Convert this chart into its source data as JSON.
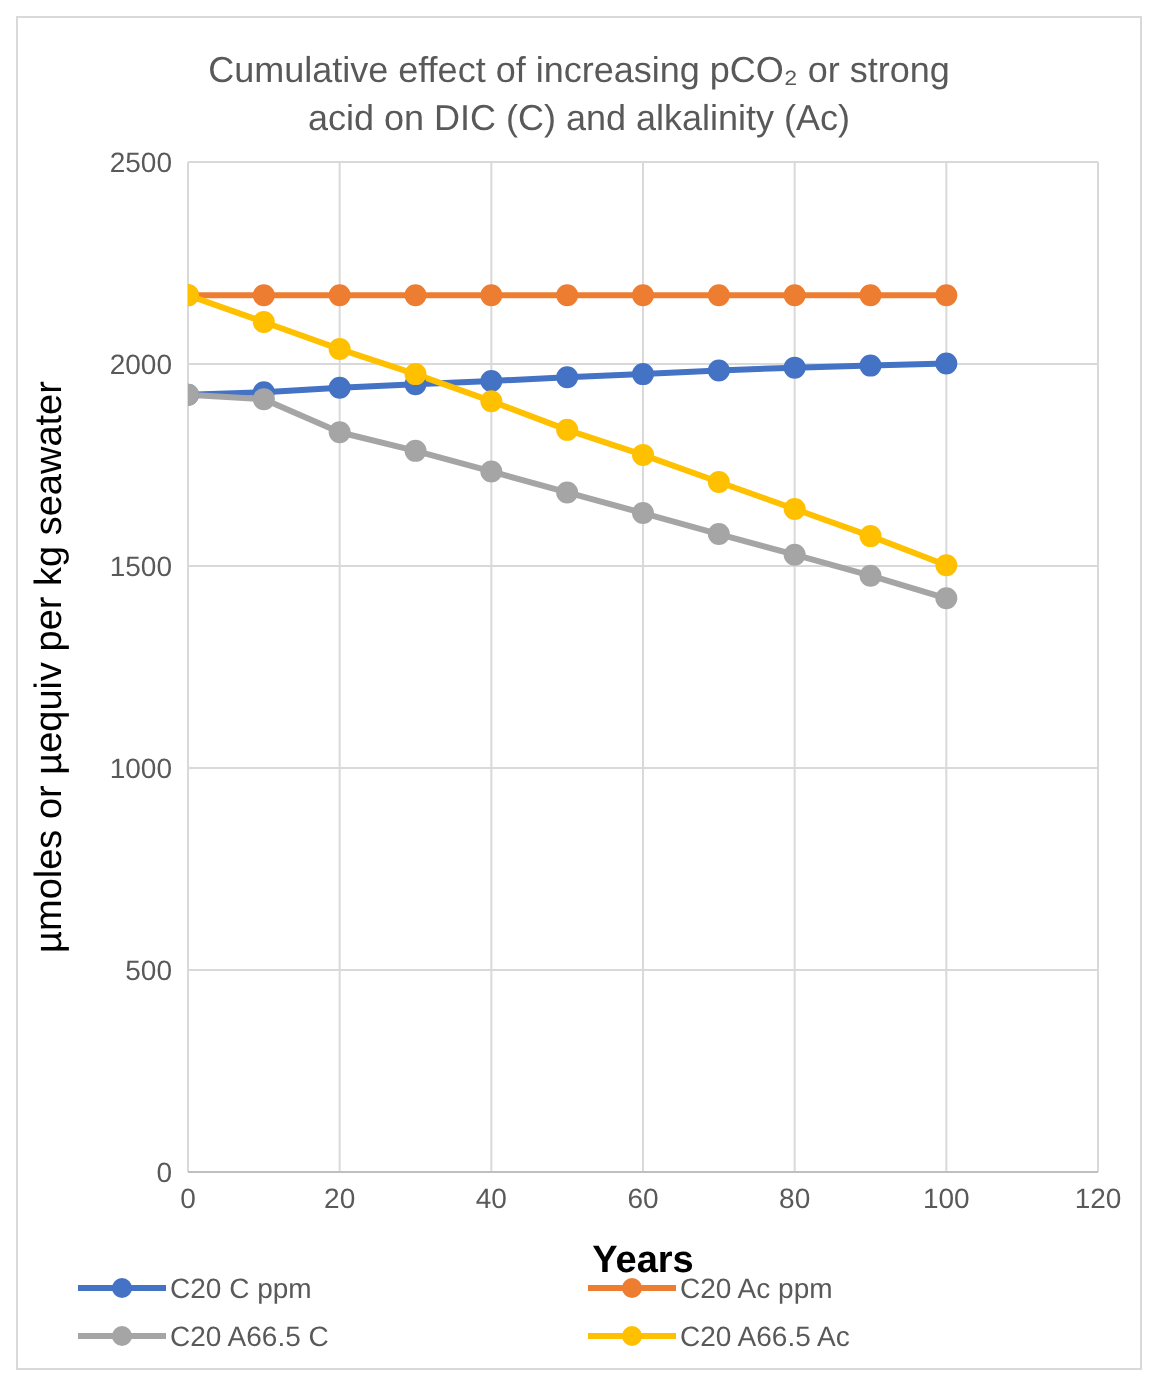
{
  "chart_data": {
    "type": "line",
    "title": "Cumulative effect of increasing pCO₂ or strong acid on DIC (C) and alkalinity (Ac)",
    "xlabel": "Years",
    "ylabel": "µmoles or µequiv per kg seawater",
    "x": [
      0,
      10,
      20,
      30,
      40,
      50,
      60,
      70,
      80,
      90,
      100
    ],
    "xlim": [
      0,
      120
    ],
    "xticks": [
      0,
      20,
      40,
      60,
      80,
      100,
      120
    ],
    "ylim": [
      0,
      2500
    ],
    "yticks": [
      0,
      500,
      1000,
      1500,
      2000,
      2500
    ],
    "grid": true,
    "legend": "bottom",
    "marker": "circle",
    "line_style": "solid",
    "series": [
      {
        "name": "C20 C ppm",
        "color": "#4472c4",
        "values": [
          1924,
          1930,
          1941,
          1950,
          1958,
          1967,
          1975,
          1984,
          1991,
          1996,
          2001
        ]
      },
      {
        "name": "C20 Ac ppm",
        "color": "#ed7d31",
        "values": [
          2170,
          2170,
          2170,
          2170,
          2170,
          2170,
          2170,
          2170,
          2170,
          2170,
          2170
        ]
      },
      {
        "name": "C20 A66.5 C",
        "color": "#a5a5a5",
        "values": [
          1924,
          1913,
          1831,
          1785,
          1734,
          1682,
          1631,
          1579,
          1528,
          1476,
          1420
        ]
      },
      {
        "name": "C20 A66.5 Ac",
        "color": "#ffc000",
        "values": [
          2170,
          2104,
          2037,
          1975,
          1908,
          1837,
          1775,
          1708,
          1641,
          1574,
          1502
        ]
      }
    ]
  }
}
